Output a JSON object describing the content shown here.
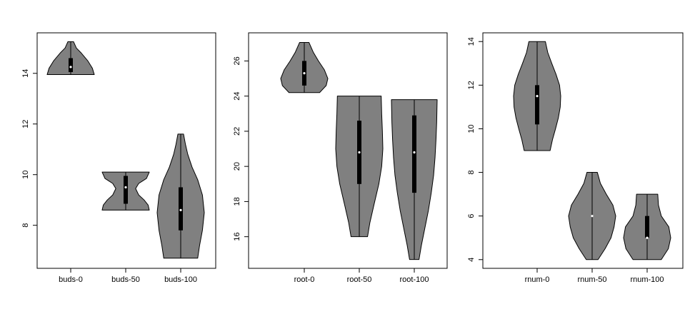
{
  "chart_data": [
    {
      "type": "violin",
      "categories": [
        "buds-0",
        "buds-50",
        "buds-100"
      ],
      "y_ticks": [
        8,
        10,
        12,
        14
      ],
      "ylim": [
        6.3,
        15.6
      ],
      "violins": [
        {
          "min": 13.95,
          "max": 15.25,
          "q1": 14.05,
          "median": 14.25,
          "q3": 14.6,
          "profile": [
            [
              13.95,
              1.0
            ],
            [
              14.2,
              0.92
            ],
            [
              14.5,
              0.72
            ],
            [
              14.8,
              0.45
            ],
            [
              15.0,
              0.24
            ],
            [
              15.25,
              0.12
            ]
          ]
        },
        {
          "min": 8.6,
          "max": 10.1,
          "q1": 8.85,
          "median": 9.5,
          "q3": 9.95,
          "profile": [
            [
              8.6,
              1.0
            ],
            [
              8.8,
              0.95
            ],
            [
              9.0,
              0.78
            ],
            [
              9.2,
              0.55
            ],
            [
              9.45,
              0.42
            ],
            [
              9.65,
              0.55
            ],
            [
              9.85,
              0.88
            ],
            [
              10.1,
              1.0
            ]
          ]
        },
        {
          "min": 6.7,
          "max": 11.6,
          "q1": 7.8,
          "median": 8.6,
          "q3": 9.5,
          "profile": [
            [
              6.7,
              0.72
            ],
            [
              7.2,
              0.8
            ],
            [
              7.8,
              0.92
            ],
            [
              8.5,
              1.0
            ],
            [
              9.2,
              0.92
            ],
            [
              9.8,
              0.72
            ],
            [
              10.3,
              0.48
            ],
            [
              10.8,
              0.3
            ],
            [
              11.2,
              0.2
            ],
            [
              11.6,
              0.12
            ]
          ]
        }
      ]
    },
    {
      "type": "violin",
      "categories": [
        "root-0",
        "root-50",
        "root-100"
      ],
      "y_ticks": [
        16,
        18,
        20,
        22,
        24,
        26
      ],
      "ylim": [
        14.2,
        27.6
      ],
      "violins": [
        {
          "min": 24.2,
          "max": 27.05,
          "q1": 24.6,
          "median": 25.3,
          "q3": 26.0,
          "profile": [
            [
              24.2,
              0.65
            ],
            [
              24.6,
              0.93
            ],
            [
              25.0,
              1.0
            ],
            [
              25.5,
              0.85
            ],
            [
              26.0,
              0.6
            ],
            [
              26.5,
              0.38
            ],
            [
              27.05,
              0.2
            ]
          ]
        },
        {
          "min": 16.0,
          "max": 24.0,
          "q1": 19.0,
          "median": 20.8,
          "q3": 22.6,
          "profile": [
            [
              16.0,
              0.35
            ],
            [
              16.8,
              0.45
            ],
            [
              17.8,
              0.62
            ],
            [
              19.0,
              0.83
            ],
            [
              20.0,
              0.95
            ],
            [
              21.0,
              1.0
            ],
            [
              22.0,
              0.98
            ],
            [
              23.0,
              0.95
            ],
            [
              24.0,
              0.93
            ]
          ]
        },
        {
          "min": 14.7,
          "max": 23.8,
          "q1": 18.5,
          "median": 20.8,
          "q3": 22.9,
          "profile": [
            [
              14.7,
              0.2
            ],
            [
              15.5,
              0.3
            ],
            [
              16.5,
              0.45
            ],
            [
              17.5,
              0.6
            ],
            [
              18.5,
              0.72
            ],
            [
              19.5,
              0.82
            ],
            [
              20.5,
              0.88
            ],
            [
              21.5,
              0.92
            ],
            [
              22.5,
              0.95
            ],
            [
              23.8,
              0.97
            ]
          ]
        }
      ]
    },
    {
      "type": "violin",
      "categories": [
        "rnum-0",
        "rnum-50",
        "rnum-100"
      ],
      "y_ticks": [
        4,
        6,
        8,
        10,
        12,
        14
      ],
      "ylim": [
        3.6,
        14.4
      ],
      "violins": [
        {
          "min": 9.0,
          "max": 14.0,
          "q1": 10.2,
          "median": 11.5,
          "q3": 12.0,
          "profile": [
            [
              9.0,
              0.55
            ],
            [
              9.5,
              0.65
            ],
            [
              10.0,
              0.78
            ],
            [
              10.5,
              0.9
            ],
            [
              11.0,
              0.98
            ],
            [
              11.5,
              1.0
            ],
            [
              12.0,
              0.95
            ],
            [
              12.5,
              0.8
            ],
            [
              13.0,
              0.62
            ],
            [
              13.5,
              0.45
            ],
            [
              14.0,
              0.35
            ]
          ]
        },
        {
          "min": 4.0,
          "max": 8.0,
          "q1": 6.0,
          "median": 6.0,
          "q3": 6.0,
          "profile": [
            [
              4.0,
              0.25
            ],
            [
              4.5,
              0.55
            ],
            [
              5.0,
              0.8
            ],
            [
              5.5,
              0.93
            ],
            [
              6.0,
              1.0
            ],
            [
              6.5,
              0.88
            ],
            [
              7.0,
              0.6
            ],
            [
              7.5,
              0.35
            ],
            [
              8.0,
              0.22
            ]
          ]
        },
        {
          "min": 4.0,
          "max": 7.0,
          "q1": 5.0,
          "median": 5.0,
          "q3": 6.0,
          "profile": [
            [
              4.0,
              0.6
            ],
            [
              4.5,
              0.9
            ],
            [
              5.0,
              1.0
            ],
            [
              5.5,
              0.92
            ],
            [
              6.0,
              0.6
            ],
            [
              6.5,
              0.48
            ],
            [
              7.0,
              0.45
            ]
          ]
        }
      ]
    }
  ],
  "colors": {
    "violin_fill": "#808080",
    "box": "#000000",
    "median_dot": "#ffffff",
    "axis": "#000000"
  }
}
